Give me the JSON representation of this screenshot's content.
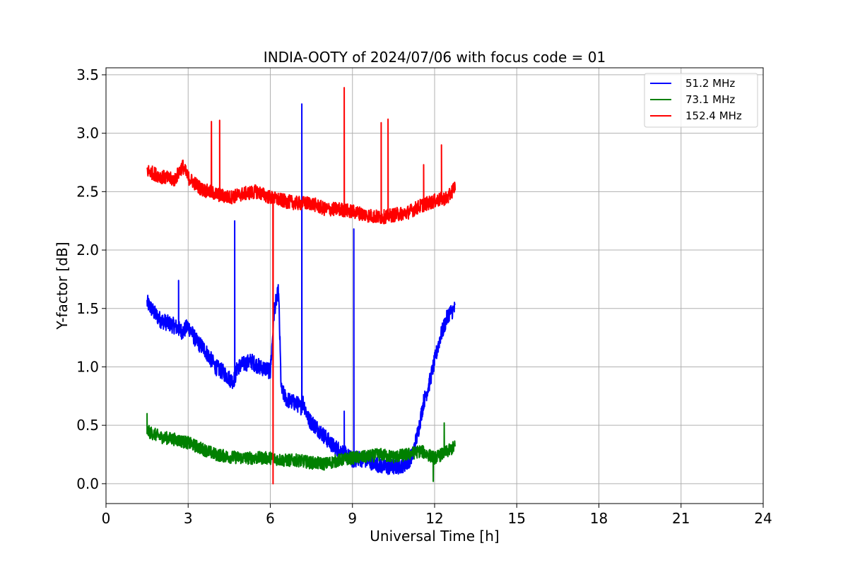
{
  "chart_data": {
    "type": "line",
    "title": "INDIA-OOTY of 2024/07/06 with focus code = 01",
    "xlabel": "Universal Time [h]",
    "ylabel": "Y-factor [dB]",
    "xlim": [
      0,
      24
    ],
    "ylim": [
      -0.17,
      3.56
    ],
    "xticks": [
      0,
      3,
      6,
      9,
      12,
      15,
      18,
      21,
      24
    ],
    "yticks": [
      0.0,
      0.5,
      1.0,
      1.5,
      2.0,
      2.5,
      3.0,
      3.5
    ],
    "grid": true,
    "legend_position": "top-right",
    "series": [
      {
        "name": "51.2 MHz",
        "color": "#0000ff",
        "x": [
          1.5,
          1.8,
          2.0,
          2.5,
          2.8,
          3.0,
          3.3,
          3.6,
          4.0,
          4.3,
          4.6,
          4.7,
          4.8,
          5.0,
          5.3,
          5.6,
          5.9,
          6.0,
          6.15,
          6.3,
          6.4,
          6.6,
          7.0,
          7.1,
          7.2,
          7.4,
          7.7,
          8.0,
          8.3,
          8.6,
          8.9,
          9.05,
          9.2,
          9.5,
          9.8,
          10.1,
          10.4,
          10.7,
          11.0,
          11.2,
          11.4,
          11.6,
          11.8,
          12.0,
          12.2,
          12.5,
          12.75
        ],
        "y": [
          1.55,
          1.45,
          1.4,
          1.35,
          1.3,
          1.35,
          1.22,
          1.15,
          1.0,
          0.95,
          0.88,
          0.9,
          1.0,
          1.02,
          1.05,
          1.0,
          0.98,
          0.95,
          1.5,
          1.65,
          0.8,
          0.72,
          0.68,
          0.65,
          0.7,
          0.55,
          0.48,
          0.4,
          0.32,
          0.28,
          0.22,
          0.2,
          0.22,
          0.2,
          0.18,
          0.15,
          0.14,
          0.15,
          0.18,
          0.25,
          0.45,
          0.7,
          0.85,
          1.05,
          1.25,
          1.45,
          1.5
        ],
        "spikes": [
          {
            "x": 2.65,
            "y": 1.74
          },
          {
            "x": 4.7,
            "y": 2.25
          },
          {
            "x": 7.15,
            "y": 3.25
          },
          {
            "x": 9.05,
            "y": 2.18
          },
          {
            "x": 8.7,
            "y": 0.62
          }
        ]
      },
      {
        "name": "73.1 MHz",
        "color": "#008000",
        "x": [
          1.5,
          2.0,
          2.5,
          3.0,
          3.5,
          4.0,
          4.5,
          5.0,
          5.5,
          6.0,
          6.5,
          7.0,
          7.5,
          8.0,
          8.5,
          9.0,
          9.5,
          10.0,
          10.5,
          11.0,
          11.5,
          12.0,
          12.5,
          12.75
        ],
        "y": [
          0.45,
          0.4,
          0.38,
          0.35,
          0.3,
          0.25,
          0.23,
          0.22,
          0.22,
          0.22,
          0.2,
          0.2,
          0.18,
          0.17,
          0.2,
          0.22,
          0.23,
          0.25,
          0.23,
          0.25,
          0.28,
          0.22,
          0.28,
          0.32
        ],
        "spikes": [
          {
            "x": 1.5,
            "y": 0.6
          },
          {
            "x": 11.95,
            "y": 0.02
          },
          {
            "x": 12.35,
            "y": 0.52
          }
        ]
      },
      {
        "name": "152.4 MHz",
        "color": "#ff0000",
        "x": [
          1.5,
          2.0,
          2.5,
          2.8,
          3.0,
          3.5,
          4.0,
          4.5,
          5.0,
          5.5,
          6.0,
          6.5,
          7.0,
          7.5,
          8.0,
          8.5,
          9.0,
          9.5,
          10.0,
          10.5,
          11.0,
          11.5,
          12.0,
          12.5,
          12.75
        ],
        "y": [
          2.68,
          2.63,
          2.6,
          2.72,
          2.62,
          2.52,
          2.48,
          2.45,
          2.48,
          2.5,
          2.45,
          2.42,
          2.4,
          2.4,
          2.35,
          2.35,
          2.33,
          2.3,
          2.28,
          2.3,
          2.32,
          2.38,
          2.42,
          2.45,
          2.55
        ],
        "spikes": [
          {
            "x": 3.85,
            "y": 3.1
          },
          {
            "x": 4.15,
            "y": 3.11
          },
          {
            "x": 6.1,
            "y": 0.0
          },
          {
            "x": 8.7,
            "y": 3.39
          },
          {
            "x": 10.05,
            "y": 3.09
          },
          {
            "x": 10.3,
            "y": 3.12
          },
          {
            "x": 11.6,
            "y": 2.73
          },
          {
            "x": 12.25,
            "y": 2.9
          }
        ]
      }
    ]
  }
}
